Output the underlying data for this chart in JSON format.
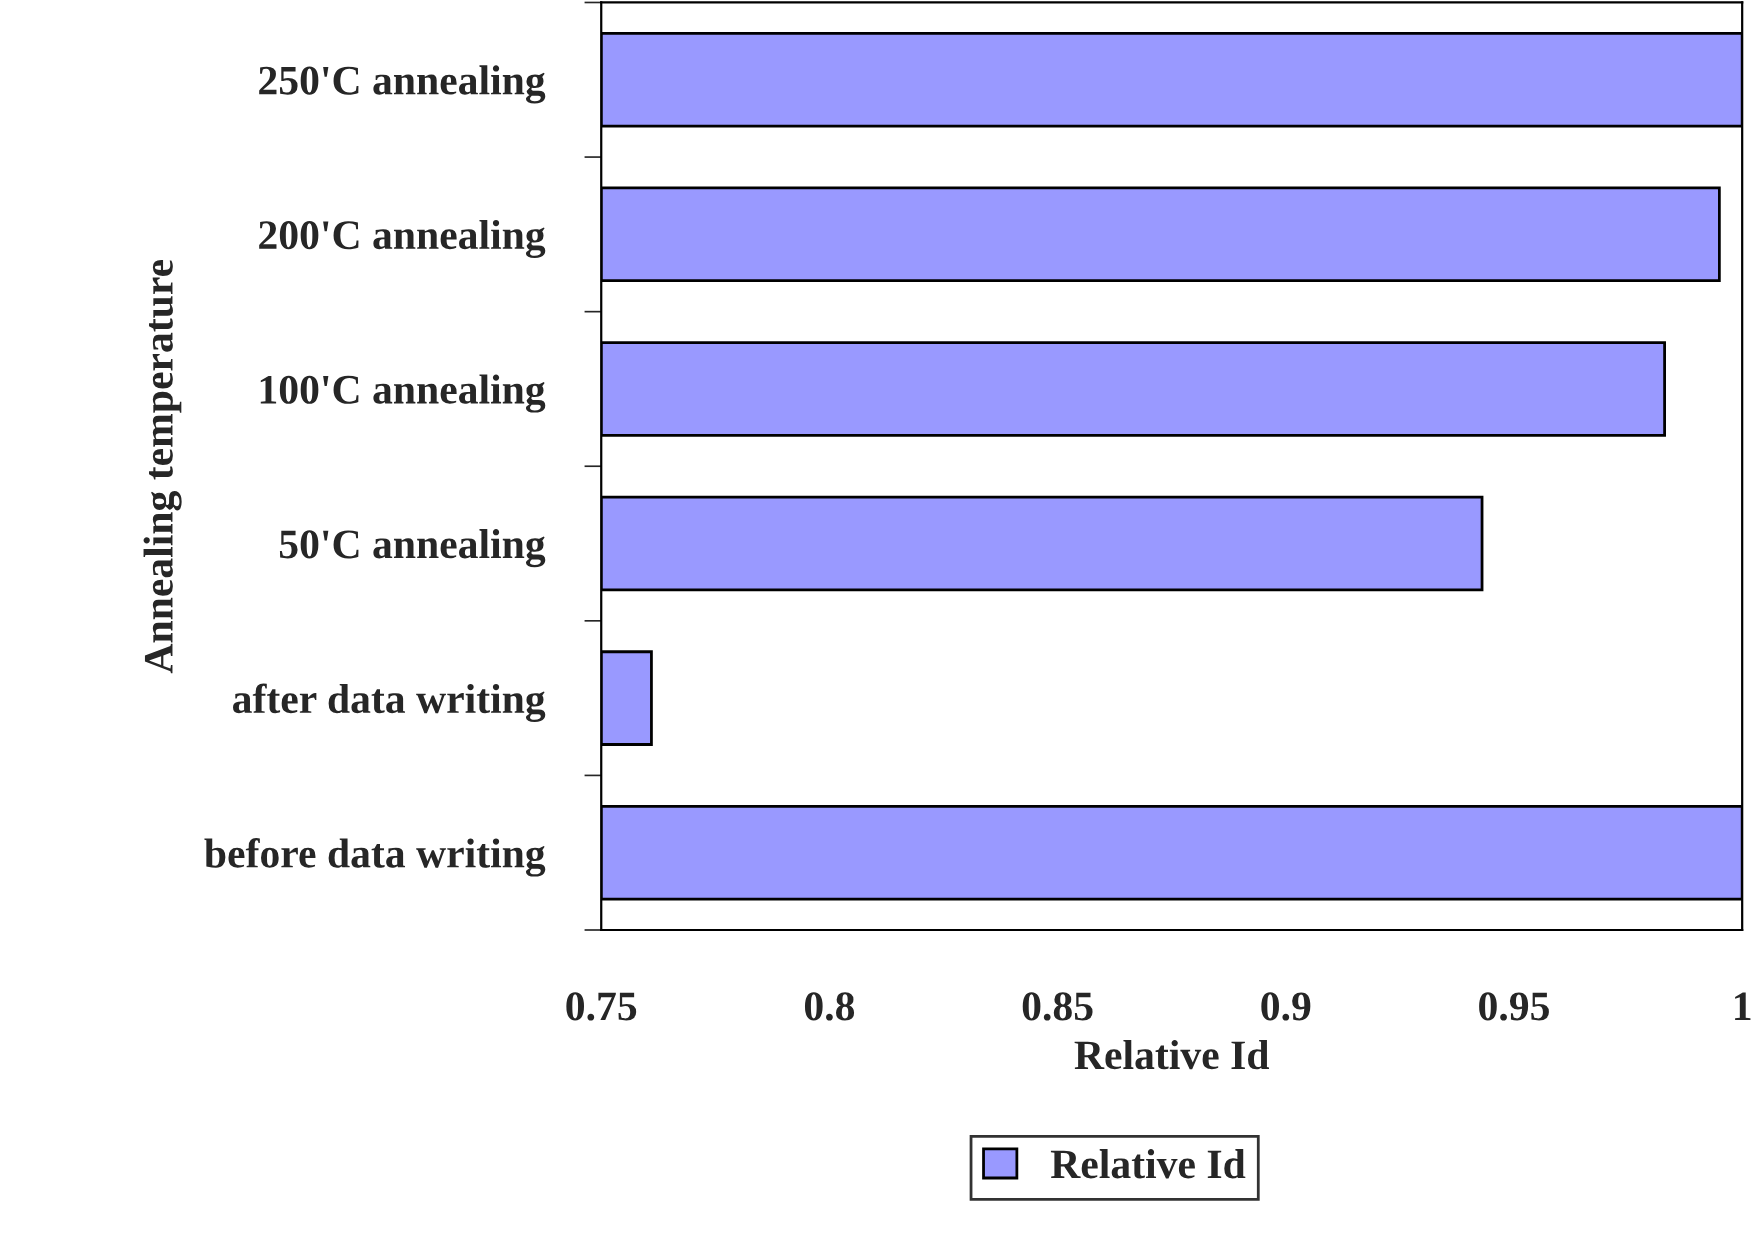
{
  "chart_data": {
    "type": "bar",
    "orientation": "horizontal",
    "xlabel": "Relative Id",
    "ylabel": "Annealing temperature",
    "categories": [
      "250'C annealing",
      "200'C annealing",
      "100'C annealing",
      "50'C annealing",
      "after data writing",
      "before data writing"
    ],
    "series": [
      {
        "name": "Relative Id",
        "color": "#9999ff",
        "values": [
          1.0,
          0.995,
          0.983,
          0.943,
          0.761,
          1.0
        ]
      }
    ],
    "xlim": [
      0.75,
      1.0
    ],
    "xticks": [
      0.75,
      0.8,
      0.85,
      0.9,
      0.95,
      1
    ],
    "grid": false,
    "legend": "bottom"
  }
}
